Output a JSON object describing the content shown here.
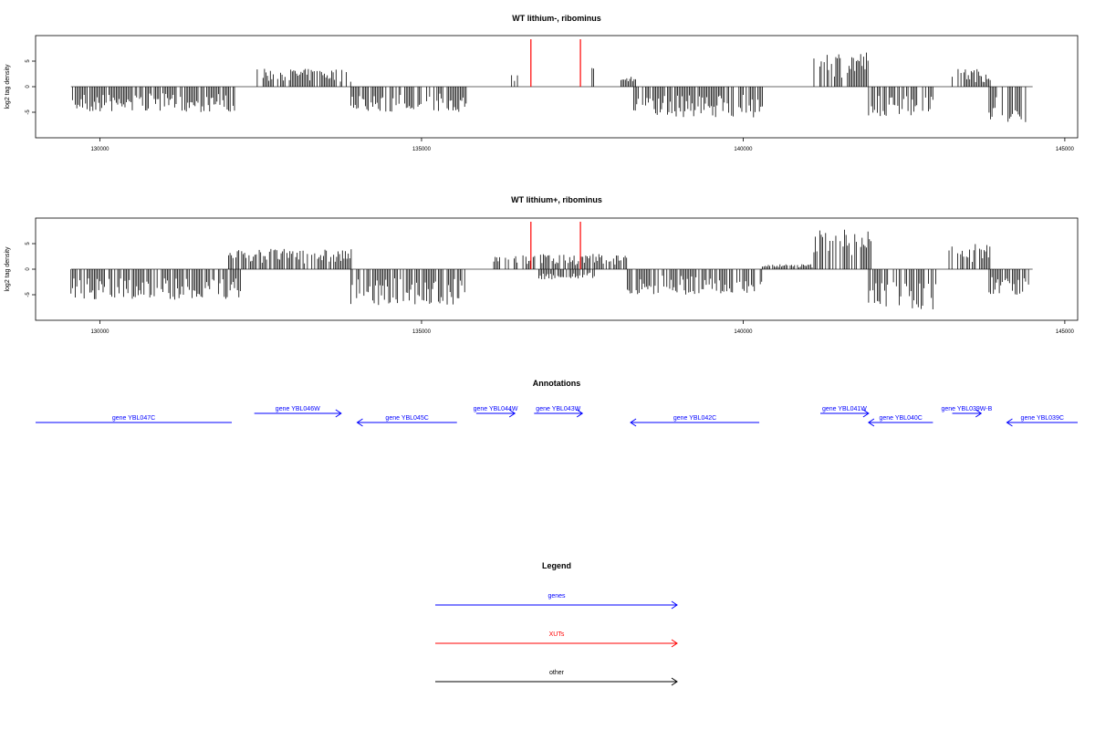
{
  "colors": {
    "genes": "#0000ff",
    "xuts": "#ff0000",
    "other": "#000000",
    "baseline": "#888888"
  },
  "chart_data": [
    {
      "type": "bar",
      "title": "WT lithium-, ribominus",
      "ylabel": "log2 tag density",
      "xlim": [
        129000,
        145200
      ],
      "ylim": [
        -10,
        10
      ],
      "xticks": [
        "130000",
        "135000",
        "140000",
        "145000"
      ],
      "yticks": [
        "-5",
        "0",
        "5"
      ],
      "x_range": [
        129550,
        144500
      ],
      "regions": [
        {
          "x": [
            129550,
            132200
          ],
          "sign": -1,
          "amp": 5
        },
        {
          "x": [
            132400,
            133900
          ],
          "sign": 1,
          "amp": 3.5
        },
        {
          "x": [
            133900,
            135700
          ],
          "sign": -1,
          "amp": 5
        },
        {
          "x": [
            136400,
            136500
          ],
          "sign": 1,
          "amp": 2.5
        },
        {
          "x": [
            137650,
            137700
          ],
          "sign": 1,
          "amp": 4
        },
        {
          "x": [
            138100,
            138400
          ],
          "sign": 1,
          "amp": 2
        },
        {
          "x": [
            138300,
            140300
          ],
          "sign": -1,
          "amp": 6
        },
        {
          "x": [
            141100,
            141950
          ],
          "sign": 1,
          "amp": 7
        },
        {
          "x": [
            141950,
            142950
          ],
          "sign": -1,
          "amp": 6
        },
        {
          "x": [
            143250,
            143850
          ],
          "sign": 1,
          "amp": 3.5
        },
        {
          "x": [
            143800,
            144500
          ],
          "sign": -1,
          "amp": 7
        }
      ],
      "red_marks": [
        136700,
        137470
      ]
    },
    {
      "type": "bar",
      "title": "WT lithium+, ribominus",
      "ylabel": "log2 tag density",
      "xlim": [
        129000,
        145200
      ],
      "ylim": [
        -10,
        10
      ],
      "xticks": [
        "130000",
        "135000",
        "140000",
        "145000"
      ],
      "yticks": [
        "-5",
        "0",
        "5"
      ],
      "x_range": [
        129550,
        144500
      ],
      "regions": [
        {
          "x": [
            129550,
            132200
          ],
          "sign": -1,
          "amp": 6
        },
        {
          "x": [
            132000,
            133950
          ],
          "sign": 1,
          "amp": 4
        },
        {
          "x": [
            133900,
            135700
          ],
          "sign": -1,
          "amp": 7
        },
        {
          "x": [
            136100,
            138200
          ],
          "sign": 1,
          "amp": 3
        },
        {
          "x": [
            136800,
            137700
          ],
          "sign": -1,
          "amp": 2
        },
        {
          "x": [
            138200,
            140300
          ],
          "sign": -1,
          "amp": 5
        },
        {
          "x": [
            140300,
            141100
          ],
          "sign": 1,
          "amp": 1
        },
        {
          "x": [
            141100,
            142000
          ],
          "sign": 1,
          "amp": 8
        },
        {
          "x": [
            141950,
            143000
          ],
          "sign": -1,
          "amp": 8
        },
        {
          "x": [
            143200,
            143850
          ],
          "sign": 1,
          "amp": 5
        },
        {
          "x": [
            143800,
            144500
          ],
          "sign": -1,
          "amp": 5
        }
      ],
      "red_marks": [
        136700,
        137470
      ]
    }
  ],
  "annotations": {
    "title": "Annotations",
    "genes": [
      {
        "label": "gene YBL047C",
        "start": 129000,
        "end": 132050,
        "dir": "none",
        "row": 1
      },
      {
        "label": "gene YBL046W",
        "start": 132400,
        "end": 133750,
        "dir": "right",
        "row": 0
      },
      {
        "label": "gene YBL045C",
        "start": 134000,
        "end": 135550,
        "dir": "left",
        "row": 1
      },
      {
        "label": "gene YBL044W",
        "start": 135850,
        "end": 136450,
        "dir": "right",
        "row": 0
      },
      {
        "label": "gene YBL043W",
        "start": 136750,
        "end": 137500,
        "dir": "right",
        "row": 0
      },
      {
        "label": "gene YBL042C",
        "start": 138250,
        "end": 140250,
        "dir": "left",
        "row": 1
      },
      {
        "label": "gene YBL041W",
        "start": 141200,
        "end": 141950,
        "dir": "right",
        "row": 0
      },
      {
        "label": "gene YBL040C",
        "start": 141950,
        "end": 142950,
        "dir": "left",
        "row": 1
      },
      {
        "label": "gene YBL039W-B",
        "start": 143250,
        "end": 143700,
        "dir": "right",
        "row": 0
      },
      {
        "label": "gene YBL039C",
        "start": 144100,
        "end": 145200,
        "dir": "left",
        "row": 1
      }
    ]
  },
  "legend": {
    "title": "Legend",
    "items": [
      {
        "label": "genes",
        "color": "#0000ff"
      },
      {
        "label": "XUTs",
        "color": "#ff0000"
      },
      {
        "label": "other",
        "color": "#000000"
      }
    ]
  }
}
